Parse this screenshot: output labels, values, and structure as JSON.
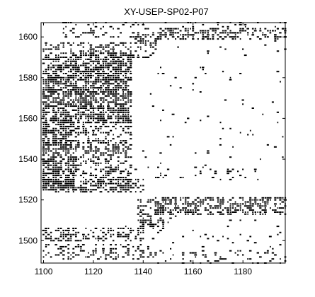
{
  "chart_data": {
    "type": "scatter",
    "title": "XY-USEP-SP02-P07",
    "xlabel": "",
    "ylabel": "",
    "xlim": [
      1099,
      1197
    ],
    "ylim": [
      1489,
      1607
    ],
    "xticks": [
      1100,
      1120,
      1140,
      1160,
      1180
    ],
    "yticks": [
      1500,
      1520,
      1540,
      1560,
      1580,
      1600
    ],
    "grid": false,
    "marker_color": "#000000",
    "axis_color": "#000000",
    "series": [
      {
        "regions": [
          {
            "x": [
              1100,
              1135
            ],
            "y": [
              1525,
              1597
            ],
            "density": 0.42
          },
          {
            "x": [
              1100,
              1112
            ],
            "y": [
              1525,
              1590
            ],
            "density": 0.5
          },
          {
            "x": [
              1112,
              1135
            ],
            "y": [
              1558,
              1592
            ],
            "density": 0.5
          },
          {
            "x": [
              1135,
              1145
            ],
            "y": [
              1590,
              1600
            ],
            "density": 0.3
          },
          {
            "x": [
              1145,
              1197
            ],
            "y": [
              1599,
              1604
            ],
            "density": 0.35
          },
          {
            "x": [
              1108,
              1197
            ],
            "y": [
              1600,
              1607
            ],
            "density": 0.18
          },
          {
            "x": [
              1145,
              1197
            ],
            "y": [
              1513,
              1521
            ],
            "density": 0.55
          },
          {
            "x": [
              1138,
              1148
            ],
            "y": [
              1505,
              1520
            ],
            "density": 0.35
          },
          {
            "x": [
              1100,
              1140
            ],
            "y": [
              1500,
              1506
            ],
            "density": 0.35
          },
          {
            "x": [
              1100,
              1145
            ],
            "y": [
              1491,
              1498
            ],
            "density": 0.28
          },
          {
            "x": [
              1145,
              1197
            ],
            "y": [
              1489,
              1495
            ],
            "density": 0.22
          },
          {
            "x": [
              1100,
              1140
            ],
            "y": [
              1524,
              1530
            ],
            "density": 0.45
          },
          {
            "x": [
              1135,
              1197
            ],
            "y": [
              1530,
              1536
            ],
            "density": 0.06
          },
          {
            "x": [
              1140,
              1197
            ],
            "y": [
              1536,
              1598
            ],
            "density": 0.015
          },
          {
            "x": [
              1120,
              1197
            ],
            "y": [
              1496,
              1512
            ],
            "density": 0.025
          }
        ]
      }
    ]
  }
}
